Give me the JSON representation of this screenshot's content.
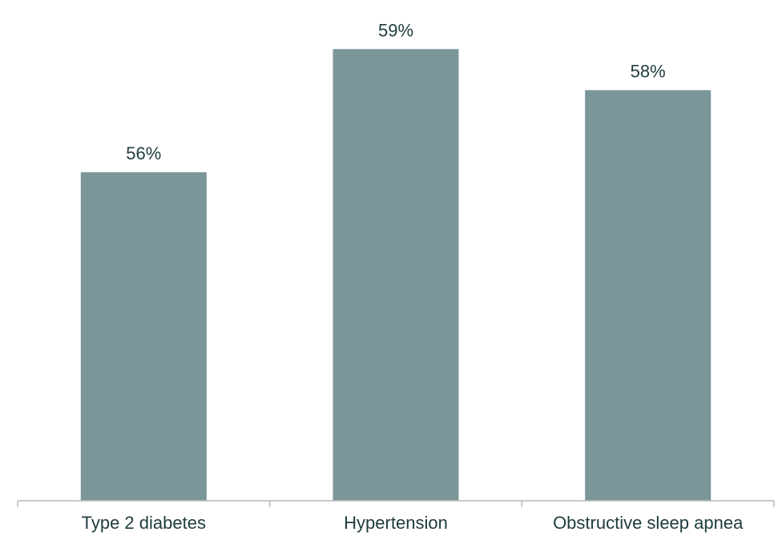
{
  "chart_data": {
    "type": "bar",
    "categories": [
      "Type 2 diabetes",
      "Hypertension",
      "Obstructive sleep apnea"
    ],
    "values": [
      56,
      59,
      58
    ],
    "data_labels": [
      "56%",
      "59%",
      "58%"
    ],
    "title": "",
    "xlabel": "",
    "ylabel": "",
    "ylim": [
      48,
      60
    ],
    "grid": false,
    "legend": "none",
    "colors": {
      "bar": "#7b9699",
      "label_text": "#1f3b3f",
      "axis": "#b7b7b7"
    }
  }
}
